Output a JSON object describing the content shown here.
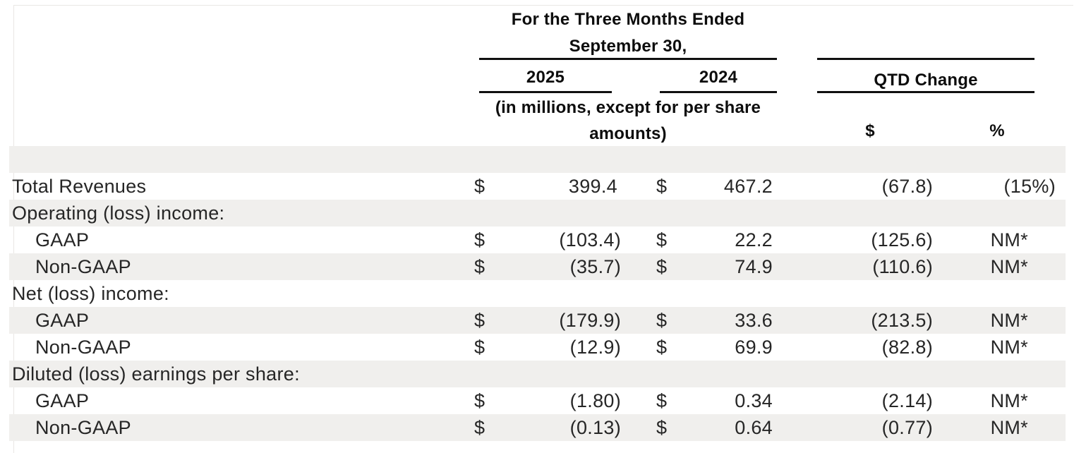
{
  "table": {
    "title_line1": "For the Three Months Ended",
    "title_line2": "September 30,",
    "year_columns": [
      "2025",
      "2024"
    ],
    "qtd_change_label": "QTD Change",
    "units_note_line1": "(in millions, except for per share",
    "units_note_line2": "amounts)",
    "qtd_subheaders": {
      "dollar": "$",
      "percent": "%"
    },
    "rows": [
      {
        "label": "Total Revenues",
        "indent": false,
        "cur1": "$",
        "v2025": "399.4",
        "cur2": "$",
        "v2024": "467.2",
        "qtd_dollar": "(67.8)",
        "qtd_percent": "(15%)"
      },
      {
        "label": "Operating (loss) income:",
        "indent": false,
        "cur1": "",
        "v2025": "",
        "cur2": "",
        "v2024": "",
        "qtd_dollar": "",
        "qtd_percent": ""
      },
      {
        "label": "GAAP",
        "indent": true,
        "cur1": "$",
        "v2025": "(103.4)",
        "cur2": "$",
        "v2024": "22.2",
        "qtd_dollar": "(125.6)",
        "qtd_percent": "NM*"
      },
      {
        "label": "Non-GAAP",
        "indent": true,
        "cur1": "$",
        "v2025": "(35.7)",
        "cur2": "$",
        "v2024": "74.9",
        "qtd_dollar": "(110.6)",
        "qtd_percent": "NM*"
      },
      {
        "label": "Net (loss) income:",
        "indent": false,
        "cur1": "",
        "v2025": "",
        "cur2": "",
        "v2024": "",
        "qtd_dollar": "",
        "qtd_percent": ""
      },
      {
        "label": "GAAP",
        "indent": true,
        "cur1": "$",
        "v2025": "(179.9)",
        "cur2": "$",
        "v2024": "33.6",
        "qtd_dollar": "(213.5)",
        "qtd_percent": "NM*"
      },
      {
        "label": "Non-GAAP",
        "indent": true,
        "cur1": "$",
        "v2025": "(12.9)",
        "cur2": "$",
        "v2024": "69.9",
        "qtd_dollar": "(82.8)",
        "qtd_percent": "NM*"
      },
      {
        "label": "Diluted (loss) earnings per share:",
        "indent": false,
        "cur1": "",
        "v2025": "",
        "cur2": "",
        "v2024": "",
        "qtd_dollar": "",
        "qtd_percent": ""
      },
      {
        "label": "GAAP",
        "indent": true,
        "cur1": "$",
        "v2025": "(1.80)",
        "cur2": "$",
        "v2024": "0.34",
        "qtd_dollar": "(2.14)",
        "qtd_percent": "NM*"
      },
      {
        "label": "Non-GAAP",
        "indent": true,
        "cur1": "$",
        "v2025": "(0.13)",
        "cur2": "$",
        "v2024": "0.64",
        "qtd_dollar": "(0.77)",
        "qtd_percent": "NM*"
      }
    ]
  },
  "colors": {
    "row_stripe": "#f0efed",
    "rule": "#101010",
    "text": "#262626",
    "header_text": "#0d0d0d"
  }
}
